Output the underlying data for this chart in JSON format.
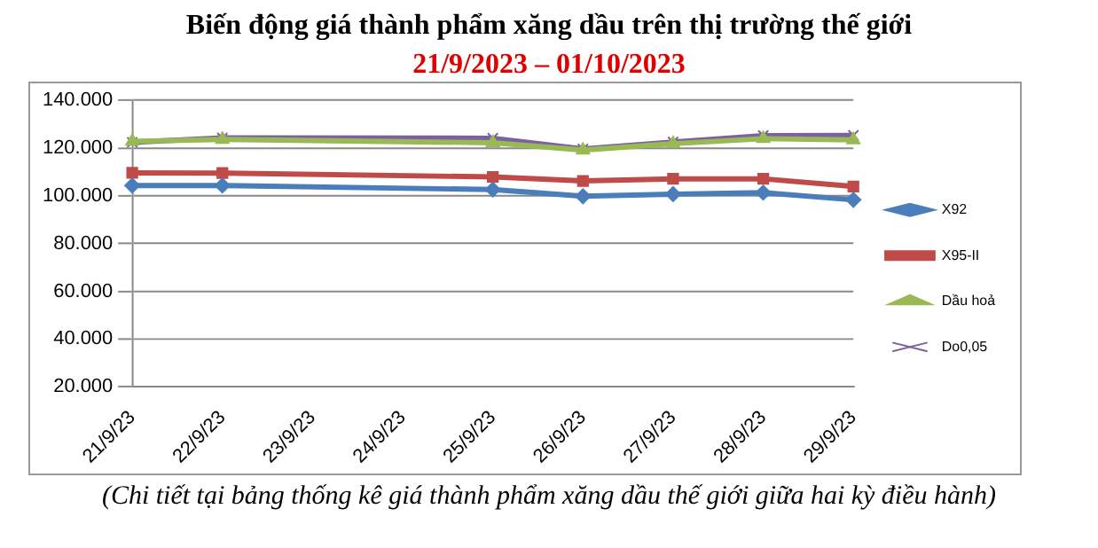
{
  "chart_data": {
    "type": "line",
    "title": "Biến động giá thành phẩm xăng dầu trên thị trường thế giới",
    "subtitle": "21/9/2023 – 01/10/2023",
    "categories": [
      "21/9/23",
      "22/9/23",
      "23/9/23",
      "24/9/23",
      "25/9/23",
      "26/9/23",
      "27/9/23",
      "28/9/23",
      "29/9/23"
    ],
    "series": [
      {
        "name": "X92",
        "color": "#4a7ebb",
        "marker": "diamond",
        "values": [
          104.3,
          104.3,
          null,
          null,
          102.6,
          99.8,
          100.7,
          101.3,
          98.3
        ]
      },
      {
        "name": "X95-II",
        "color": "#be4b48",
        "marker": "square",
        "values": [
          109.6,
          109.5,
          null,
          null,
          107.9,
          106.2,
          107.1,
          107.1,
          103.9
        ]
      },
      {
        "name": "Dầu hoả",
        "color": "#98b954",
        "marker": "triangle",
        "values": [
          122.8,
          123.6,
          null,
          null,
          122.2,
          119.1,
          121.8,
          123.9,
          123.4
        ]
      },
      {
        "name": "Do0,05",
        "color": "#7d60a0",
        "marker": "cross",
        "values": [
          122.4,
          124.2,
          null,
          null,
          124.1,
          119.6,
          122.5,
          125.2,
          125.3
        ]
      }
    ],
    "ylim": [
      20,
      140
    ],
    "yticks": [
      {
        "value": 20,
        "label": "20.000"
      },
      {
        "value": 40,
        "label": "40.000"
      },
      {
        "value": 60,
        "label": "60.000"
      },
      {
        "value": 80,
        "label": "80.000"
      },
      {
        "value": 100,
        "label": "100.000"
      },
      {
        "value": 120,
        "label": "120.000"
      },
      {
        "value": 140,
        "label": "140.000"
      }
    ],
    "grid": "y",
    "legend": "right",
    "line_style": "solid",
    "annotations": [
      "(Chi tiết tại bảng thống kê giá thành phẩm xăng dầu thế giới giữa hai kỳ điều hành)"
    ]
  }
}
